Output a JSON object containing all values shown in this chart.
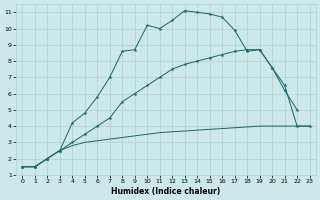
{
  "xlabel": "Humidex (Indice chaleur)",
  "xlim": [
    -0.5,
    23.5
  ],
  "ylim": [
    1,
    11.5
  ],
  "xticks": [
    0,
    1,
    2,
    3,
    4,
    5,
    6,
    7,
    8,
    9,
    10,
    11,
    12,
    13,
    14,
    15,
    16,
    17,
    18,
    19,
    20,
    21,
    22,
    23
  ],
  "yticks": [
    1,
    2,
    3,
    4,
    5,
    6,
    7,
    8,
    9,
    10,
    11
  ],
  "bg_color": "#cce8e8",
  "grid_color": "#b0d0d0",
  "line_color": "#1a6666",
  "line1_x": [
    0,
    1,
    2,
    3,
    4,
    5,
    6,
    7,
    8,
    9,
    10,
    11,
    12,
    13,
    14,
    15,
    16,
    17,
    18,
    19,
    20,
    21,
    22,
    23
  ],
  "line1_y": [
    1.5,
    1.5,
    2.0,
    2.5,
    2.8,
    3.0,
    3.1,
    3.2,
    3.3,
    3.4,
    3.5,
    3.6,
    3.65,
    3.7,
    3.75,
    3.8,
    3.85,
    3.9,
    3.95,
    4.0,
    4.0,
    4.0,
    4.0,
    4.0
  ],
  "line2_x": [
    0,
    1,
    2,
    3,
    4,
    5,
    6,
    7,
    8,
    9,
    10,
    11,
    12,
    13,
    14,
    15,
    16,
    17,
    18,
    19,
    20,
    21,
    22
  ],
  "line2_y": [
    1.5,
    1.5,
    2.0,
    2.5,
    4.2,
    4.8,
    5.8,
    7.0,
    8.6,
    8.7,
    10.2,
    10.0,
    10.5,
    11.1,
    11.0,
    10.9,
    10.7,
    9.9,
    8.6,
    8.7,
    7.6,
    6.2,
    5.0
  ],
  "line3_x": [
    0,
    1,
    2,
    3,
    4,
    5,
    6,
    7,
    8,
    9,
    10,
    11,
    12,
    13,
    14,
    15,
    16,
    17,
    18,
    19,
    20,
    21,
    22,
    23
  ],
  "line3_y": [
    1.5,
    1.5,
    2.0,
    2.5,
    3.0,
    3.5,
    4.0,
    4.5,
    5.5,
    6.0,
    6.5,
    7.0,
    7.5,
    7.8,
    8.0,
    8.2,
    8.4,
    8.6,
    8.7,
    8.7,
    7.6,
    6.5,
    4.0,
    4.0
  ]
}
